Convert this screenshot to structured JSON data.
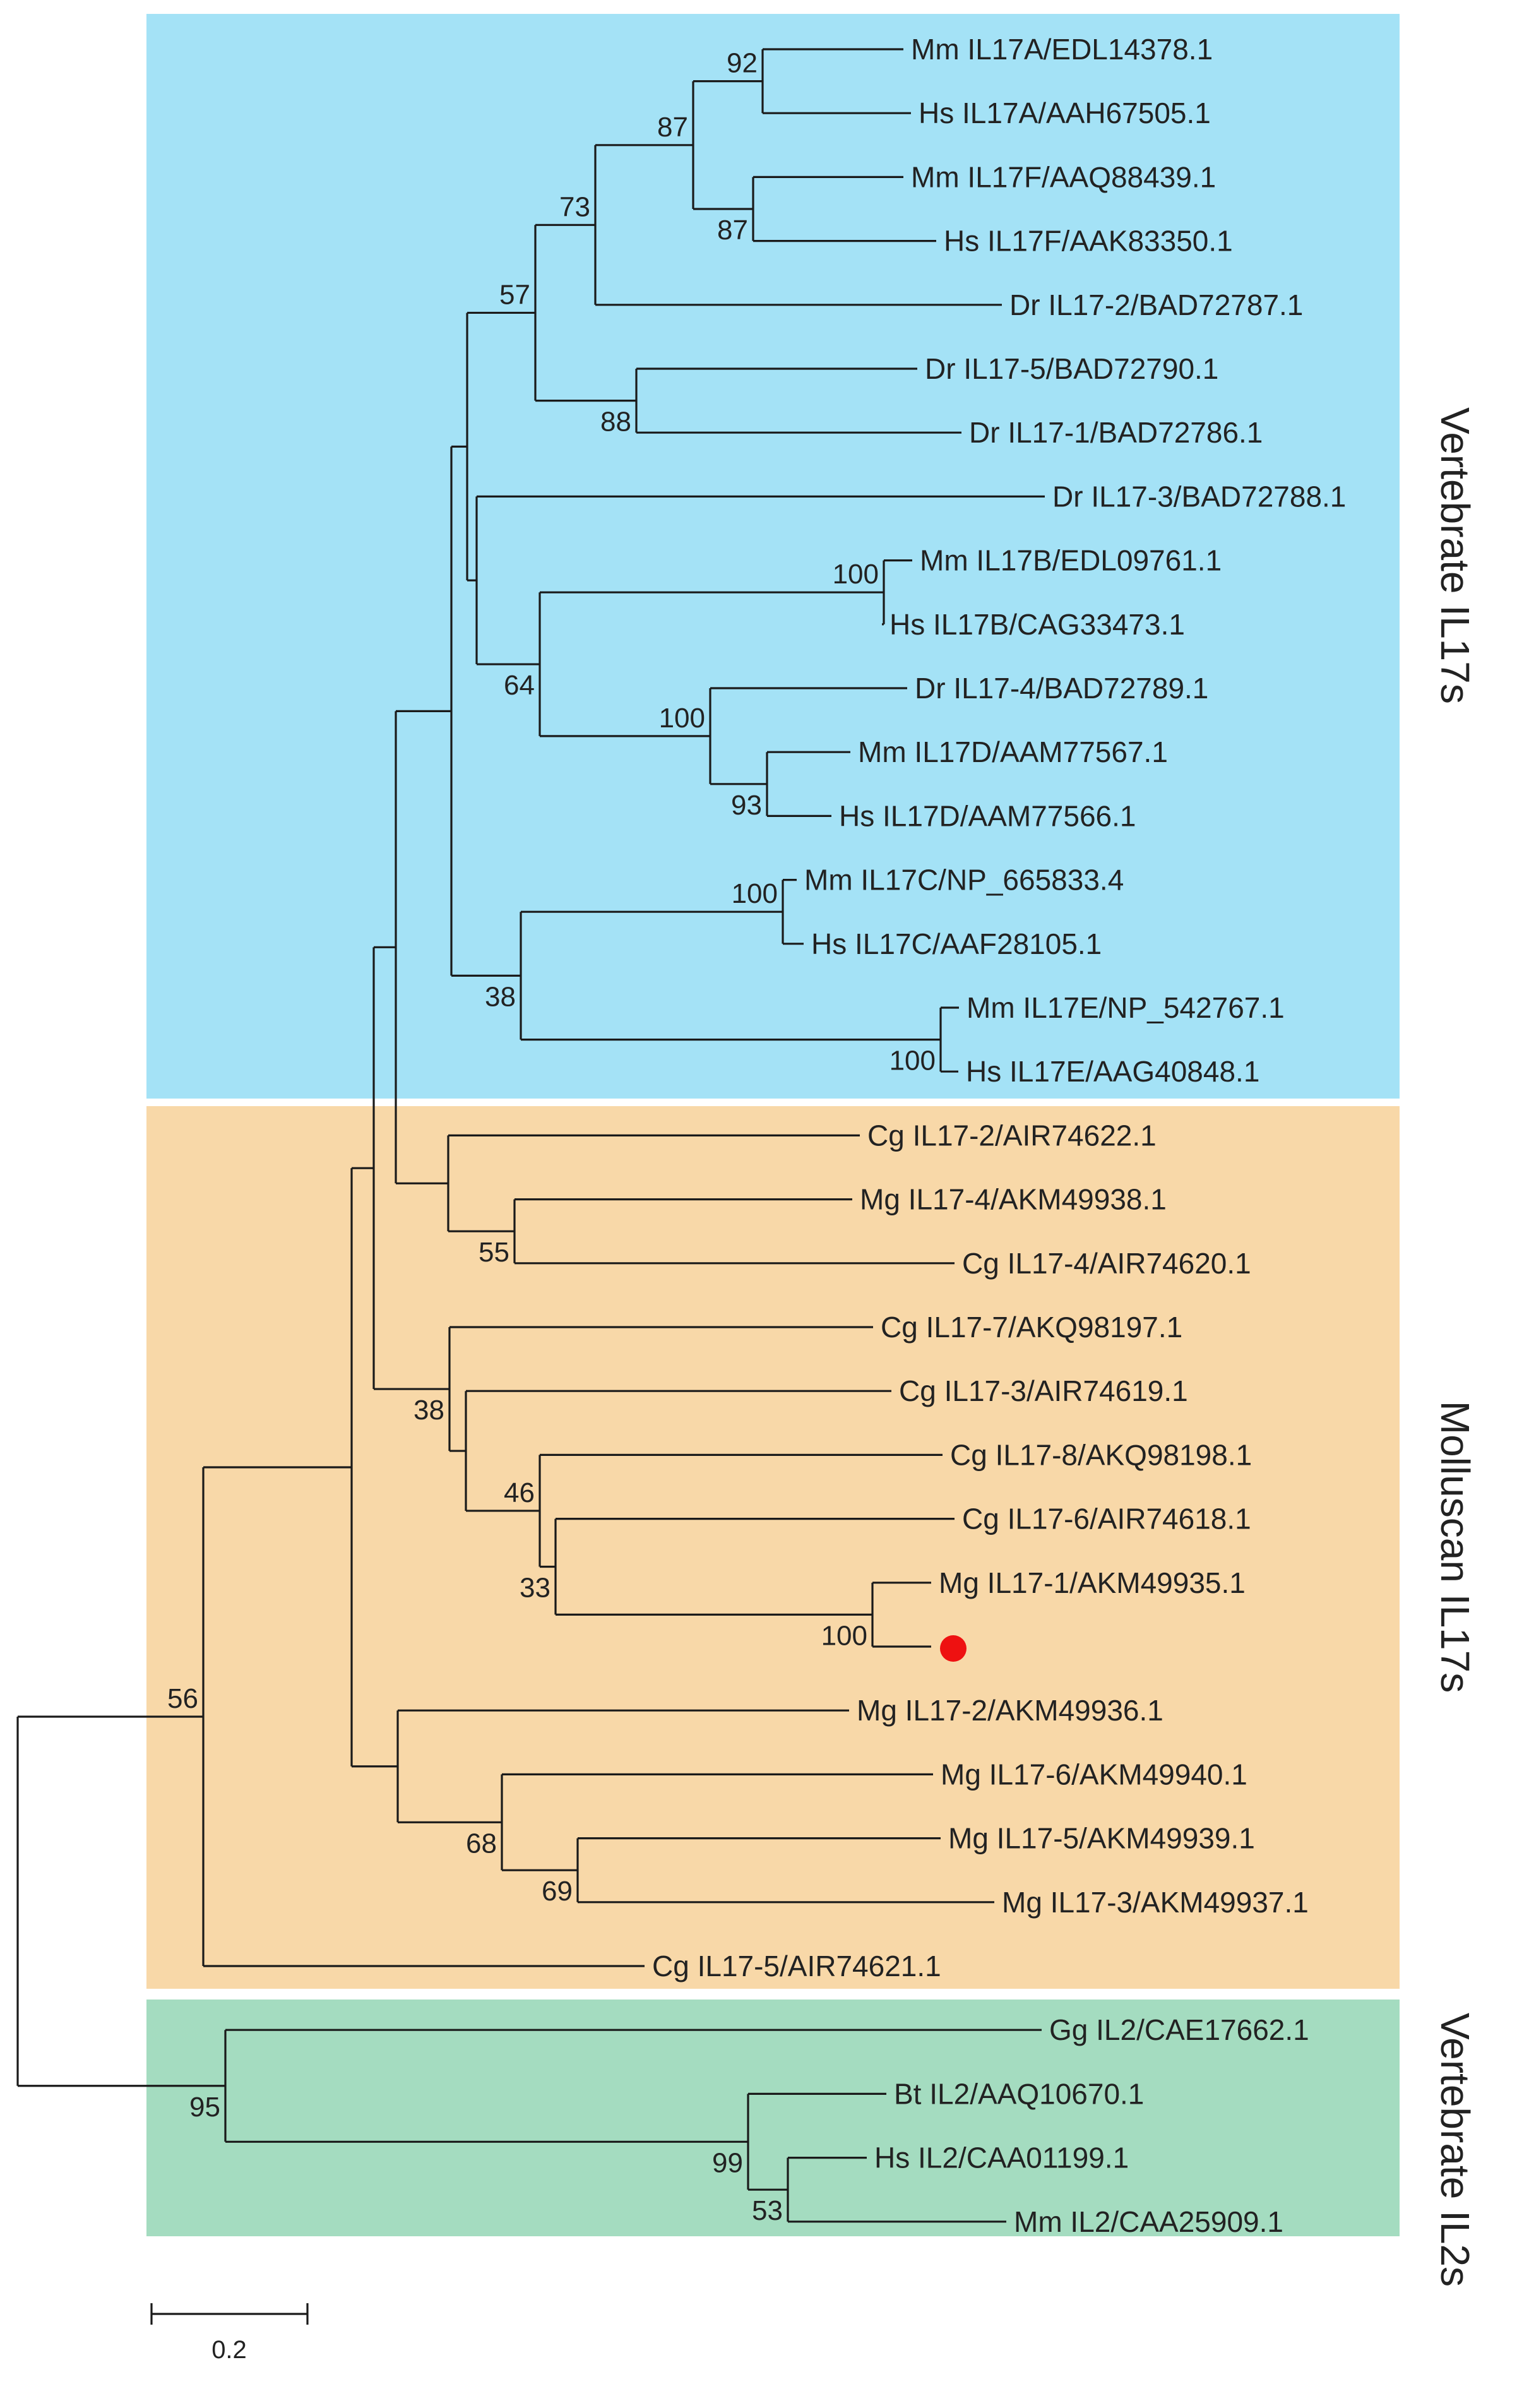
{
  "groups": [
    {
      "id": "vert_il17",
      "label": "Vertebrate  IL17s",
      "color": "#a4e2f6"
    },
    {
      "id": "moll_il17",
      "label": "Molluscan IL17s",
      "color": "#f8d8a8"
    },
    {
      "id": "vert_il2",
      "label": "Vertebrate  IL2s",
      "color": "#a4dcc0"
    }
  ],
  "leaves": [
    "Mm IL17A/EDL14378.1",
    "Hs IL17A/AAH67505.1",
    "Mm IL17F/AAQ88439.1",
    "Hs IL17F/AAK83350.1",
    "Dr IL17-2/BAD72787.1",
    "Dr IL17-5/BAD72790.1",
    "Dr IL17-1/BAD72786.1",
    "Dr IL17-3/BAD72788.1",
    "Mm IL17B/EDL09761.1",
    "Hs IL17B/CAG33473.1",
    "Dr IL17-4/BAD72789.1",
    "Mm IL17D/AAM77567.1",
    "Hs IL17D/AAM77566.1",
    "Mm IL17C/NP_665833.4",
    "Hs IL17C/AAF28105.1",
    "Mm IL17E/NP_542767.1",
    "Hs IL17E/AAG40848.1",
    "Cg IL17-2/AIR74622.1",
    "Mg IL17-4/AKM49938.1",
    "Cg IL17-4/AIR74620.1",
    "Cg IL17-7/AKQ98197.1",
    "Cg IL17-3/AIR74619.1",
    "Cg IL17-8/AKQ98198.1",
    "Cg IL17-6/AIR74618.1",
    "Mg IL17-1/AKM49935.1",
    "",
    "Mg IL17-2/AKM49936.1",
    "Mg IL17-6/AKM49940.1",
    "Mg IL17-5/AKM49939.1",
    "Mg IL17-3/AKM49937.1",
    "Cg IL17-5/AIR74621.1",
    "Gg IL2/CAE17662.1",
    "Bt IL2/AAQ10670.1",
    "Hs IL2/CAA01199.1",
    "Mm IL2/CAA25909.1"
  ],
  "bootstrap": [
    {
      "node": "A_pair",
      "value": "92"
    },
    {
      "node": "A_F",
      "value": "87"
    },
    {
      "node": "F_pair",
      "value": "87"
    },
    {
      "node": "AF_Dr2",
      "value": "73"
    },
    {
      "node": "AF_Dr51",
      "value": "57"
    },
    {
      "node": "Dr5_Dr1",
      "value": "88"
    },
    {
      "node": "B_pair",
      "value": "100"
    },
    {
      "node": "BD",
      "value": "64"
    },
    {
      "node": "Dr4_D",
      "value": "100"
    },
    {
      "node": "D_pair",
      "value": "93"
    },
    {
      "node": "C_pair",
      "value": "100"
    },
    {
      "node": "CE",
      "value": "38"
    },
    {
      "node": "E_pair",
      "value": "100"
    },
    {
      "node": "Mg4_Cg4",
      "value": "55"
    },
    {
      "node": "Cg7_group",
      "value": "38"
    },
    {
      "node": "Cg8_group",
      "value": "46"
    },
    {
      "node": "Cg6_group",
      "value": "33"
    },
    {
      "node": "Mg1_new",
      "value": "100"
    },
    {
      "node": "IL17_all",
      "value": "56"
    },
    {
      "node": "Mg6_group",
      "value": "68"
    },
    {
      "node": "Mg5_Mg3",
      "value": "69"
    },
    {
      "node": "IL2_all",
      "value": "95"
    },
    {
      "node": "Bt_group",
      "value": "99"
    },
    {
      "node": "Hs_Mm_IL2",
      "value": "53"
    }
  ],
  "highlight": {
    "leaf_index": 25,
    "color": "#ee1111",
    "shape": "circle"
  },
  "scale_bar": {
    "value": 0.2,
    "label": "0.2"
  }
}
